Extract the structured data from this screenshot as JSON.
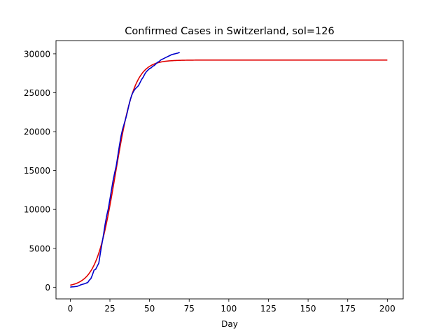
{
  "chart_data": {
    "type": "line",
    "title": "Confirmed Cases in Switzerland, sol=126",
    "xlabel": "Day",
    "ylabel": "",
    "xlim": [
      -9,
      210
    ],
    "ylim": [
      -1500,
      31700
    ],
    "xticks": [
      0,
      25,
      50,
      75,
      100,
      125,
      150,
      175,
      200
    ],
    "yticks": [
      0,
      5000,
      10000,
      15000,
      20000,
      25000,
      30000
    ],
    "grid": false,
    "legend": "none",
    "series": [
      {
        "color": "#0000cc",
        "x": [
          0,
          1,
          2,
          3,
          4,
          5,
          6,
          7,
          8,
          9,
          10,
          11,
          12,
          13,
          14,
          15,
          16,
          17,
          18,
          19,
          20,
          21,
          22,
          23,
          24,
          25,
          26,
          27,
          28,
          29,
          30,
          31,
          32,
          33,
          34,
          35,
          36,
          37,
          38,
          39,
          40,
          41,
          42,
          43,
          44,
          45,
          46,
          47,
          48,
          49,
          50,
          51,
          52,
          53,
          54,
          55,
          56,
          57,
          58,
          59,
          60,
          61,
          62,
          63,
          64,
          65,
          66,
          67,
          68,
          69
        ],
        "y": [
          0,
          50,
          60,
          80,
          100,
          160,
          250,
          330,
          390,
          450,
          530,
          600,
          900,
          1100,
          1600,
          2200,
          2300,
          2700,
          3100,
          4400,
          5600,
          6800,
          8100,
          9200,
          10100,
          11300,
          12500,
          13700,
          14700,
          15600,
          16900,
          18200,
          19400,
          20300,
          21000,
          21700,
          22500,
          23400,
          24200,
          24800,
          25200,
          25500,
          25700,
          25900,
          26300,
          26700,
          27000,
          27400,
          27700,
          27900,
          28100,
          28200,
          28400,
          28500,
          28700,
          28900,
          29000,
          29200,
          29300,
          29400,
          29500,
          29600,
          29700,
          29800,
          29900,
          29950,
          30000,
          30050,
          30100,
          30200
        ]
      },
      {
        "color": "#e00000",
        "model": "logistic",
        "params": {
          "L": 29200,
          "k": 0.165,
          "x0": 28.5
        },
        "x_range": [
          0,
          200
        ]
      }
    ]
  }
}
